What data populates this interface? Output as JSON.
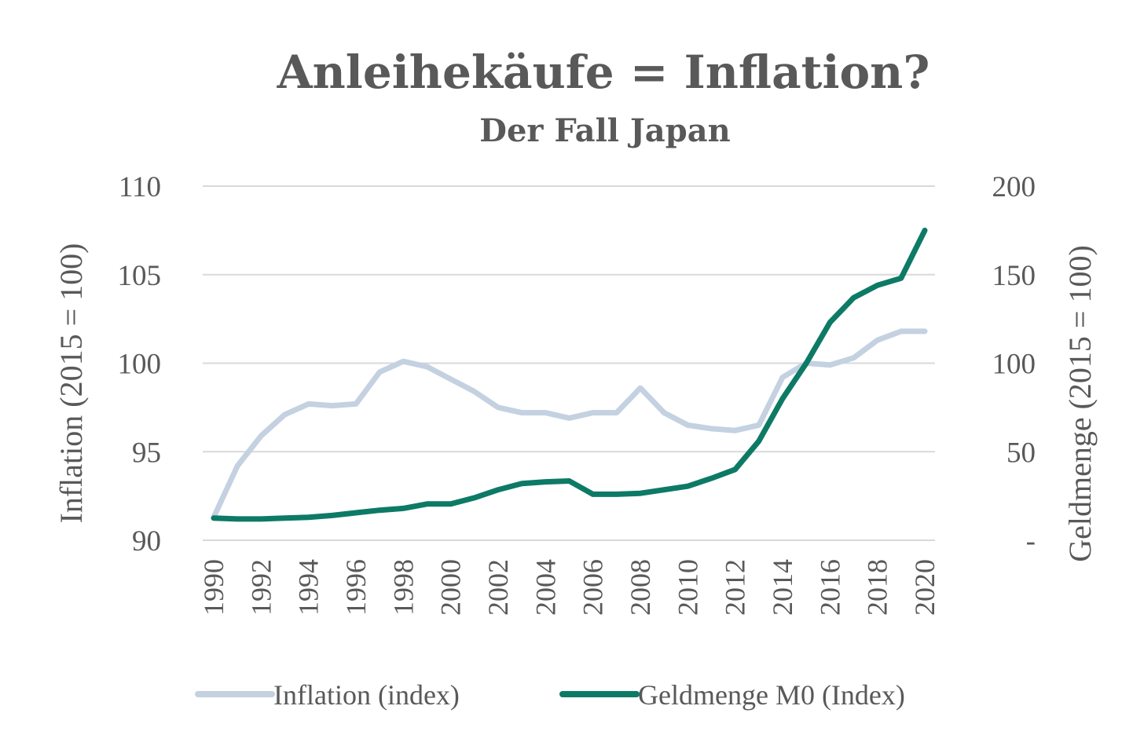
{
  "chart_data": {
    "type": "line",
    "title": "Anleihekäufe = Inflation?",
    "subtitle": "Der Fall Japan",
    "ylabel_left": "Inflation (2015 = 100)",
    "ylabel_right": "Geldmenge (2015 = 100)",
    "y_left_range": [
      90,
      110
    ],
    "y_left_ticks": [
      "90",
      "95",
      "100",
      "105",
      "110"
    ],
    "y_right_range": [
      0,
      200
    ],
    "y_right_ticks": [
      "-",
      "50",
      "100",
      "150",
      "200"
    ],
    "x_tick_labels": [
      "1990",
      "1992",
      "1994",
      "1996",
      "1998",
      "2000",
      "2002",
      "2004",
      "2006",
      "2008",
      "2010",
      "2012",
      "2014",
      "2016",
      "2018",
      "2020"
    ],
    "grid": true,
    "legend_position": "bottom",
    "x": [
      1990,
      1991,
      1992,
      1993,
      1994,
      1995,
      1996,
      1997,
      1998,
      1999,
      2000,
      2001,
      2002,
      2003,
      2004,
      2005,
      2006,
      2007,
      2008,
      2009,
      2010,
      2011,
      2012,
      2013,
      2014,
      2015,
      2016,
      2017,
      2018,
      2019,
      2020
    ],
    "series": [
      {
        "name": "Inflation (index)",
        "axis": "left",
        "color": "#c4d1e1",
        "values": [
          91.3,
          94.2,
          95.9,
          97.1,
          97.7,
          97.6,
          97.7,
          99.5,
          100.1,
          99.8,
          99.1,
          98.4,
          97.5,
          97.2,
          97.2,
          96.9,
          97.2,
          97.2,
          98.6,
          97.2,
          96.5,
          96.3,
          96.2,
          96.5,
          99.2,
          100.0,
          99.9,
          100.3,
          101.3,
          101.8,
          101.8
        ]
      },
      {
        "name": "Geldmenge M0 (Index)",
        "axis": "right",
        "color": "#0d7a66",
        "values": [
          12.5,
          12,
          12,
          12.5,
          13,
          14,
          15.5,
          17,
          18,
          20.5,
          20.5,
          24,
          28.5,
          32,
          33,
          33.5,
          26,
          26,
          26.5,
          28.5,
          30.5,
          35,
          40,
          56,
          80,
          100,
          123,
          137,
          144,
          148,
          175
        ]
      }
    ]
  }
}
